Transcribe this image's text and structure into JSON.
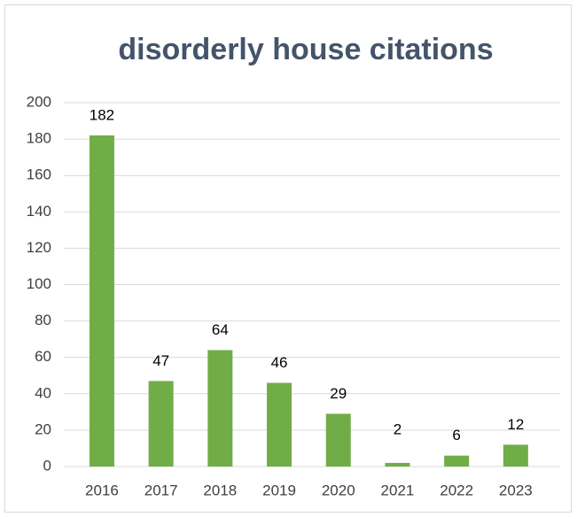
{
  "chart_data": {
    "type": "bar",
    "title": "disorderly house citations",
    "categories": [
      "2016",
      "2017",
      "2018",
      "2019",
      "2020",
      "2021",
      "2022",
      "2023"
    ],
    "values": [
      182,
      47,
      64,
      46,
      29,
      2,
      6,
      12
    ],
    "color": "#70ad47",
    "ylim": [
      0,
      200
    ],
    "yticks": [
      0,
      20,
      40,
      60,
      80,
      100,
      120,
      140,
      160,
      180,
      200
    ],
    "grid": true
  }
}
